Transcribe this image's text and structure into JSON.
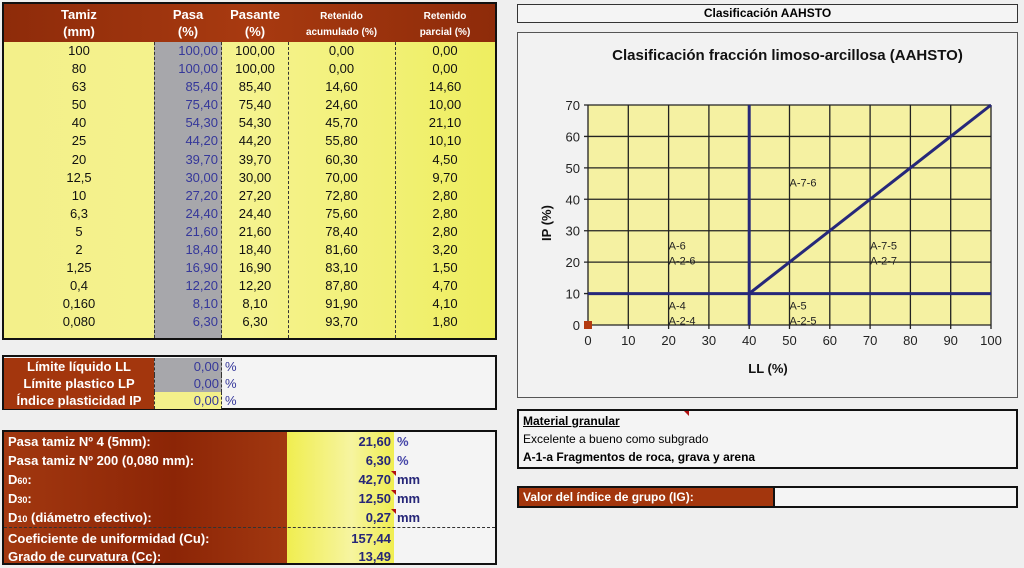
{
  "sieve_table": {
    "headers": {
      "tamiz": [
        "Tamiz",
        "(mm)"
      ],
      "pasa": [
        "Pasa",
        "(%)"
      ],
      "pasante": [
        "Pasante",
        "(%)"
      ],
      "ret_acum": [
        "Retenido",
        "acumulado (%)"
      ],
      "ret_parcial": [
        "Retenido",
        "parcial (%)"
      ]
    },
    "rows": [
      {
        "tamiz": "100",
        "pasa": "100,00",
        "pasante": "100,00",
        "ret_acum": "0,00",
        "ret_parcial": "0,00"
      },
      {
        "tamiz": "80",
        "pasa": "100,00",
        "pasante": "100,00",
        "ret_acum": "0,00",
        "ret_parcial": "0,00"
      },
      {
        "tamiz": "63",
        "pasa": "85,40",
        "pasante": "85,40",
        "ret_acum": "14,60",
        "ret_parcial": "14,60"
      },
      {
        "tamiz": "50",
        "pasa": "75,40",
        "pasante": "75,40",
        "ret_acum": "24,60",
        "ret_parcial": "10,00"
      },
      {
        "tamiz": "40",
        "pasa": "54,30",
        "pasante": "54,30",
        "ret_acum": "45,70",
        "ret_parcial": "21,10"
      },
      {
        "tamiz": "25",
        "pasa": "44,20",
        "pasante": "44,20",
        "ret_acum": "55,80",
        "ret_parcial": "10,10"
      },
      {
        "tamiz": "20",
        "pasa": "39,70",
        "pasante": "39,70",
        "ret_acum": "60,30",
        "ret_parcial": "4,50"
      },
      {
        "tamiz": "12,5",
        "pasa": "30,00",
        "pasante": "30,00",
        "ret_acum": "70,00",
        "ret_parcial": "9,70"
      },
      {
        "tamiz": "10",
        "pasa": "27,20",
        "pasante": "27,20",
        "ret_acum": "72,80",
        "ret_parcial": "2,80"
      },
      {
        "tamiz": "6,3",
        "pasa": "24,40",
        "pasante": "24,40",
        "ret_acum": "75,60",
        "ret_parcial": "2,80"
      },
      {
        "tamiz": "5",
        "pasa": "21,60",
        "pasante": "21,60",
        "ret_acum": "78,40",
        "ret_parcial": "2,80"
      },
      {
        "tamiz": "2",
        "pasa": "18,40",
        "pasante": "18,40",
        "ret_acum": "81,60",
        "ret_parcial": "3,20"
      },
      {
        "tamiz": "1,25",
        "pasa": "16,90",
        "pasante": "16,90",
        "ret_acum": "83,10",
        "ret_parcial": "1,50"
      },
      {
        "tamiz": "0,4",
        "pasa": "12,20",
        "pasante": "12,20",
        "ret_acum": "87,80",
        "ret_parcial": "4,70"
      },
      {
        "tamiz": "0,160",
        "pasa": "8,10",
        "pasante": "8,10",
        "ret_acum": "91,90",
        "ret_parcial": "4,10"
      },
      {
        "tamiz": "0,080",
        "pasa": "6,30",
        "pasante": "6,30",
        "ret_acum": "93,70",
        "ret_parcial": "1,80"
      }
    ]
  },
  "limits": [
    {
      "label": "Límite líquido LL",
      "value": "0,00",
      "unit": "%"
    },
    {
      "label": "Límite plastico LP",
      "value": "0,00",
      "unit": "%"
    },
    {
      "label": "Índice plasticidad IP",
      "value": "0,00",
      "unit": "%"
    }
  ],
  "params": [
    {
      "label": "Pasa tamiz Nº 4 (5mm):",
      "value": "21,60",
      "unit": "%"
    },
    {
      "label": "Pasa tamiz Nº 200 (0,080 mm):",
      "value": "6,30",
      "unit": "%"
    },
    {
      "label_main": "D",
      "label_sub": "60",
      "label_rest": ":",
      "value": "42,70",
      "unit": "mm"
    },
    {
      "label_main": "D",
      "label_sub": "30",
      "label_rest": ":",
      "value": "12,50",
      "unit": "mm"
    },
    {
      "label_main": "D",
      "label_sub": "10",
      "label_rest": " (diámetro efectivo):",
      "value": "0,27",
      "unit": "mm"
    },
    {
      "label": "Coeficiente de uniformidad (Cu):",
      "value": "157,44",
      "unit": ""
    },
    {
      "label": "Grado de curvatura (Cc):",
      "value": "13,49",
      "unit": ""
    }
  ],
  "aashto": {
    "title": "Clasificación AAHSTO",
    "chart_title": "Clasificación fracción limoso-arcillosa (AAHSTO)"
  },
  "result": {
    "title": "Material granular",
    "line2": "Excelente a bueno como subgrado",
    "line3": "A-1-a Fragmentos de roca, grava y arena"
  },
  "group_index": {
    "label": "Valor del índice de grupo (IG):",
    "value": ""
  },
  "colors": {
    "header_brown": "#a3360d",
    "cell_yellow": "#f3f08a",
    "pasa_gray": "#a7a7ab",
    "value_blue": "#35379a",
    "chart_line": "#26287a",
    "point": "#b33a10"
  },
  "chart_data": {
    "type": "scatter",
    "title": "Clasificación fracción limoso-arcillosa (AAHSTO)",
    "xlabel": "LL (%)",
    "ylabel": "IP (%)",
    "xlim": [
      0,
      100
    ],
    "ylim": [
      0,
      70
    ],
    "xticks": [
      "0",
      "10",
      "20",
      "30",
      "40",
      "50",
      "60",
      "70",
      "80",
      "90",
      "100"
    ],
    "yticks": [
      "0",
      "10",
      "20",
      "30",
      "40",
      "50",
      "60",
      "70"
    ],
    "grid": true,
    "points": [
      {
        "x": 0,
        "y": 0
      }
    ],
    "boundary_lines": [
      {
        "name": "IP=10",
        "x": [
          0,
          100
        ],
        "y": [
          10,
          10
        ]
      },
      {
        "name": "LL=40",
        "x": [
          40,
          40
        ],
        "y": [
          0,
          70
        ]
      },
      {
        "name": "IP=LL-30",
        "x": [
          40,
          100
        ],
        "y": [
          10,
          70
        ]
      }
    ],
    "annotations": [
      {
        "text": "A-6\nA-2-6",
        "x": 22,
        "y": 24
      },
      {
        "text": "A-7-6",
        "x": 52,
        "y": 44
      },
      {
        "text": "A-7-5\nA-2-7",
        "x": 72,
        "y": 24
      },
      {
        "text": "A-4\nA-2-4",
        "x": 22,
        "y": 5
      },
      {
        "text": "A-5\nA-2-5",
        "x": 52,
        "y": 5
      }
    ]
  }
}
